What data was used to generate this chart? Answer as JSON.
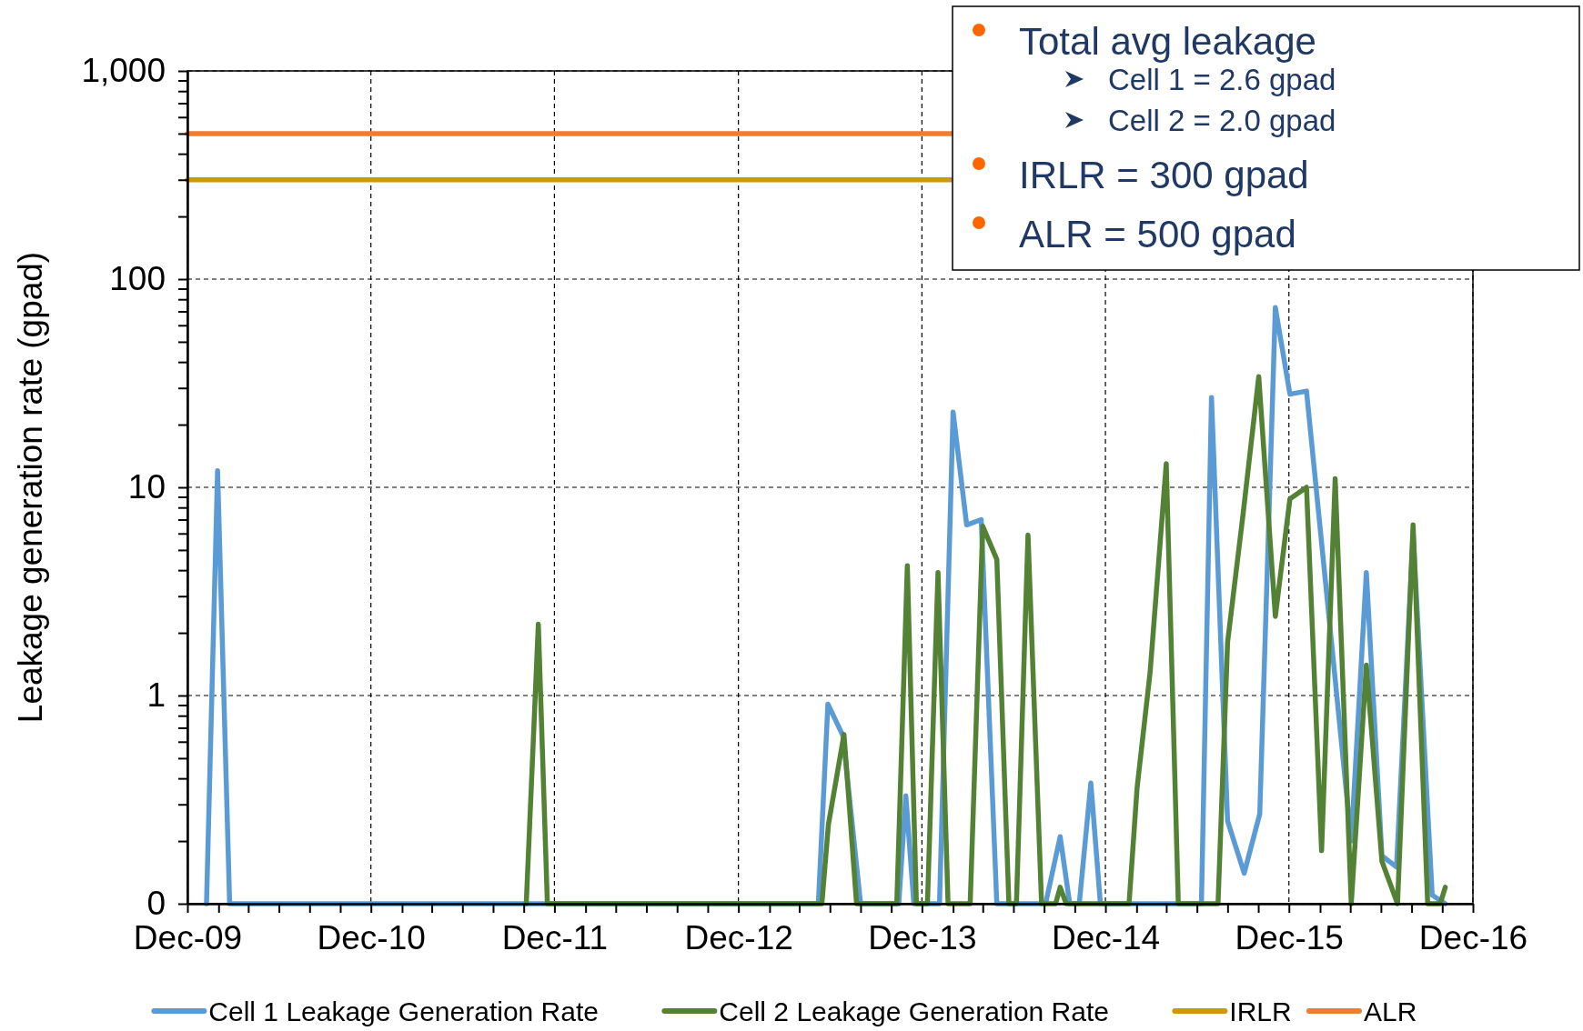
{
  "chart_data": {
    "type": "line",
    "ylabel": "Leakage generation rate (gpad)",
    "log": true,
    "grid": true,
    "legend": "bottom",
    "marker": "none",
    "line_style": "solid",
    "xlim": [
      "2009-12-01",
      "2016-12-01"
    ],
    "xticks": [
      {
        "value": "2009-12-01",
        "label": "Dec-09"
      },
      {
        "value": "2010-02-01",
        "label": null
      },
      {
        "value": "2010-04-01",
        "label": null
      },
      {
        "value": "2010-06-01",
        "label": null
      },
      {
        "value": "2010-08-01",
        "label": null
      },
      {
        "value": "2010-10-01",
        "label": null
      },
      {
        "value": "2010-12-01",
        "label": "Dec-10"
      },
      {
        "value": "2011-02-01",
        "label": null
      },
      {
        "value": "2011-04-01",
        "label": null
      },
      {
        "value": "2011-06-01",
        "label": null
      },
      {
        "value": "2011-08-01",
        "label": null
      },
      {
        "value": "2011-10-01",
        "label": null
      },
      {
        "value": "2011-12-01",
        "label": "Dec-11"
      },
      {
        "value": "2012-02-01",
        "label": null
      },
      {
        "value": "2012-04-01",
        "label": null
      },
      {
        "value": "2012-06-01",
        "label": null
      },
      {
        "value": "2012-08-01",
        "label": null
      },
      {
        "value": "2012-10-01",
        "label": null
      },
      {
        "value": "2012-12-01",
        "label": "Dec-12"
      },
      {
        "value": "2013-02-01",
        "label": null
      },
      {
        "value": "2013-04-01",
        "label": null
      },
      {
        "value": "2013-06-01",
        "label": null
      },
      {
        "value": "2013-08-01",
        "label": null
      },
      {
        "value": "2013-10-01",
        "label": null
      },
      {
        "value": "2013-12-01",
        "label": "Dec-13"
      },
      {
        "value": "2014-02-01",
        "label": null
      },
      {
        "value": "2014-04-01",
        "label": null
      },
      {
        "value": "2014-06-01",
        "label": null
      },
      {
        "value": "2014-08-01",
        "label": null
      },
      {
        "value": "2014-10-01",
        "label": null
      },
      {
        "value": "2014-12-01",
        "label": "Dec-14"
      },
      {
        "value": "2015-02-01",
        "label": null
      },
      {
        "value": "2015-04-01",
        "label": null
      },
      {
        "value": "2015-06-01",
        "label": null
      },
      {
        "value": "2015-08-01",
        "label": null
      },
      {
        "value": "2015-10-01",
        "label": null
      },
      {
        "value": "2015-12-01",
        "label": "Dec-15"
      },
      {
        "value": "2016-02-01",
        "label": null
      },
      {
        "value": "2016-04-01",
        "label": null
      },
      {
        "value": "2016-06-01",
        "label": null
      },
      {
        "value": "2016-08-01",
        "label": null
      },
      {
        "value": "2016-10-01",
        "label": null
      },
      {
        "value": "2016-12-01",
        "label": "Dec-16"
      }
    ],
    "ylim": [
      0.1,
      1000
    ],
    "yticks": [
      {
        "value": 0.1,
        "label": "0"
      },
      {
        "value": 0.2,
        "label": null
      },
      {
        "value": 0.3,
        "label": null
      },
      {
        "value": 0.4,
        "label": null
      },
      {
        "value": 0.5,
        "label": null
      },
      {
        "value": 0.6,
        "label": null
      },
      {
        "value": 0.7,
        "label": null
      },
      {
        "value": 0.8,
        "label": null
      },
      {
        "value": 0.9,
        "label": null
      },
      1,
      {
        "value": 2,
        "label": null
      },
      {
        "value": 3,
        "label": null
      },
      {
        "value": 4,
        "label": null
      },
      {
        "value": 5,
        "label": null
      },
      {
        "value": 6,
        "label": null
      },
      {
        "value": 7,
        "label": null
      },
      {
        "value": 8,
        "label": null
      },
      {
        "value": 9,
        "label": null
      },
      10,
      {
        "value": 20,
        "label": null
      },
      {
        "value": 30,
        "label": null
      },
      {
        "value": 40,
        "label": null
      },
      {
        "value": 50,
        "label": null
      },
      {
        "value": 60,
        "label": null
      },
      {
        "value": 70,
        "label": null
      },
      {
        "value": 80,
        "label": null
      },
      {
        "value": 90,
        "label": null
      },
      100,
      {
        "value": 200,
        "label": null
      },
      {
        "value": 300,
        "label": null
      },
      {
        "value": 400,
        "label": null
      },
      {
        "value": 500,
        "label": null
      },
      {
        "value": 600,
        "label": null
      },
      {
        "value": 700,
        "label": null
      },
      {
        "value": 800,
        "label": null
      },
      {
        "value": 900,
        "label": null
      },
      {
        "value": 1000,
        "label": "1,000"
      }
    ],
    "series": [
      {
        "name": "Cell 1 Leakage Generation Rate",
        "color": "#5b9bd5",
        "x": [
          "2010-01-08",
          "2010-01-30",
          "2010-02-23",
          "2013-05-09",
          "2013-05-28",
          "2013-06-27",
          "2013-08-01",
          "2013-10-16",
          "2013-10-30",
          "2013-11-15",
          "2014-01-05",
          "2014-02-01",
          "2014-02-28",
          "2014-03-29",
          "2014-04-29",
          "2014-08-04",
          "2014-09-02",
          "2014-09-21",
          "2014-10-10",
          "2014-11-02",
          "2014-11-21",
          "2015-06-10",
          "2015-06-30",
          "2015-08-01",
          "2015-09-03",
          "2015-10-04",
          "2015-11-04",
          "2015-12-03",
          "2016-01-05",
          "2016-04-03",
          "2016-05-03",
          "2016-06-03",
          "2016-07-02",
          "2016-08-04",
          "2016-09-11",
          "2016-10-07"
        ],
        "values": [
          0.1,
          12,
          0.1,
          0.1,
          0.91,
          0.64,
          0.1,
          0.1,
          0.33,
          0.1,
          0.1,
          23,
          6.6,
          7.0,
          0.1,
          0.1,
          0.21,
          0.1,
          0.1,
          0.38,
          0.1,
          0.1,
          27,
          0.25,
          0.14,
          0.27,
          73,
          28,
          29,
          0.2,
          3.9,
          0.17,
          0.15,
          6,
          0.11,
          0.1
        ]
      },
      {
        "name": "Cell 2 Leakage Generation Rate",
        "color": "#548235",
        "x": [
          "2011-10-06",
          "2011-10-30",
          "2011-11-17",
          "2013-05-16",
          "2013-05-29",
          "2013-06-29",
          "2013-07-24",
          "2013-10-12",
          "2013-11-02",
          "2013-11-20",
          "2013-12-12",
          "2014-01-02",
          "2014-01-22",
          "2014-03-07",
          "2014-04-01",
          "2014-04-29",
          "2014-05-23",
          "2014-06-07",
          "2014-06-30",
          "2014-07-27",
          "2014-08-24",
          "2014-09-02",
          "2014-09-14",
          "2015-01-17",
          "2015-02-02",
          "2015-02-28",
          "2015-04-01",
          "2015-04-25",
          "2015-07-13",
          "2015-08-01",
          "2015-09-01",
          "2015-10-02",
          "2015-11-04",
          "2015-12-03",
          "2016-01-05",
          "2016-02-04",
          "2016-03-02",
          "2016-04-03",
          "2016-05-03",
          "2016-06-03",
          "2016-07-04",
          "2016-08-04",
          "2016-09-02",
          "2016-09-27",
          "2016-10-07"
        ],
        "values": [
          0.1,
          2.2,
          0.1,
          0.1,
          0.24,
          0.65,
          0.1,
          0.1,
          4.2,
          0.1,
          0.1,
          3.9,
          0.1,
          0.1,
          6.5,
          4.5,
          0.1,
          0.1,
          5.9,
          0.1,
          0.1,
          0.12,
          0.1,
          0.1,
          0.36,
          1.3,
          13,
          0.1,
          0.1,
          1.8,
          7.5,
          34,
          2.4,
          8.8,
          10,
          0.18,
          11,
          0.1,
          1.4,
          0.16,
          0.1,
          6.6,
          0.1,
          0.1,
          0.12
        ]
      },
      {
        "name": "IRLR",
        "color": "#cc9a06",
        "x": [
          "2009-12-01",
          "2014-02-01"
        ],
        "values": [
          300,
          300
        ]
      },
      {
        "name": "ALR",
        "color": "#ed7d31",
        "x": [
          "2009-12-01",
          "2014-02-01"
        ],
        "values": [
          500,
          500
        ]
      }
    ],
    "annotations": [
      "Total avg leakage",
      "Cell 1 = 2.6 gpad",
      "Cell 2 = 2.0 gpad",
      "IRLR = 300 gpad",
      "ALR = 500 gpad"
    ]
  }
}
